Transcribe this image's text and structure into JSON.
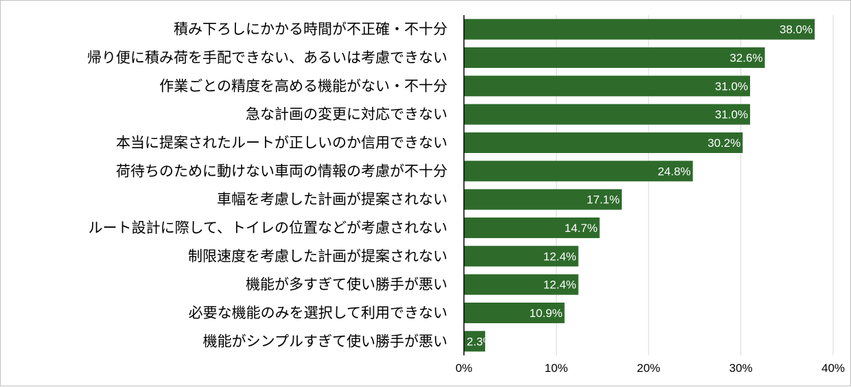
{
  "chart_data": {
    "type": "bar",
    "orientation": "horizontal",
    "categories": [
      "積み下ろしにかかる時間が不正確・不十分",
      "帰り便に積み荷を手配できない、あるいは考慮できない",
      "作業ごとの精度を高める機能がない・不十分",
      "急な計画の変更に対応できない",
      "本当に提案されたルートが正しいのか信用できない",
      "荷待ちのために動けない車両の情報の考慮が不十分",
      "車幅を考慮した計画が提案されない",
      "ルート設計に際して、トイレの位置などが考慮されない",
      "制限速度を考慮した計画が提案されない",
      "機能が多すぎて使い勝手が悪い",
      "必要な機能のみを選択して利用できない",
      "機能がシンプルすぎて使い勝手が悪い"
    ],
    "values": [
      38.0,
      32.6,
      31.0,
      31.0,
      30.2,
      24.8,
      17.1,
      14.7,
      12.4,
      12.4,
      10.9,
      2.3
    ],
    "data_labels": [
      "38.0%",
      "32.6%",
      "31.0%",
      "31.0%",
      "30.2%",
      "24.8%",
      "17.1%",
      "14.7%",
      "12.4%",
      "12.4%",
      "10.9%",
      "2.3%"
    ],
    "xlim": [
      0,
      40
    ],
    "x_ticks": [
      0,
      10,
      20,
      30,
      40
    ],
    "x_tick_labels": [
      "0%",
      "10%",
      "20%",
      "30%",
      "40%"
    ],
    "grid": true,
    "bar_color": "#2e6b2b",
    "grid_color": "#d9d9d9",
    "axis_color": "#000000"
  }
}
